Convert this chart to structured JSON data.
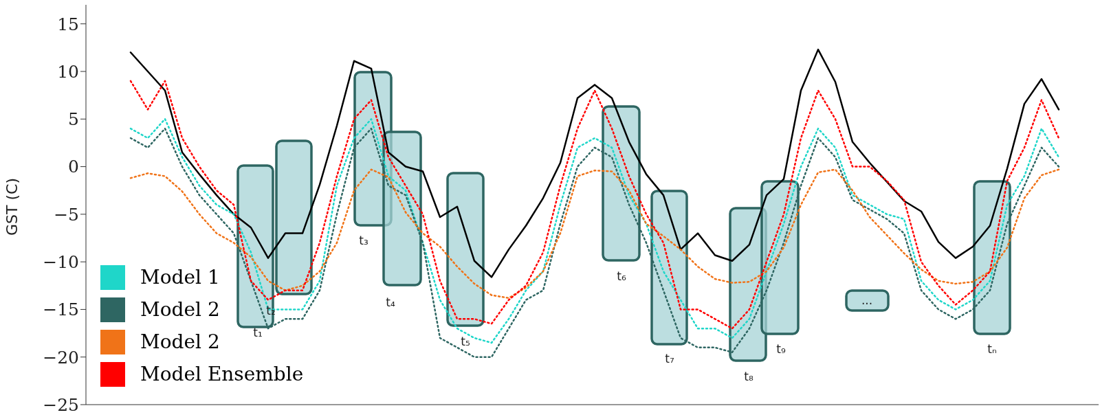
{
  "chart_data": {
    "type": "line",
    "ylabel": "GST (C)",
    "categories": [
      null,
      null,
      null,
      null,
      null,
      null,
      null,
      null,
      null,
      null,
      null,
      null,
      null,
      null,
      null,
      null,
      null,
      null,
      null,
      null,
      null,
      null,
      null,
      null,
      null,
      null,
      null,
      null,
      null,
      null,
      null,
      null,
      null,
      null,
      null,
      null,
      null,
      null,
      null,
      null,
      null,
      null,
      null,
      null,
      null,
      null,
      null,
      null,
      null,
      null,
      null,
      null,
      null,
      null,
      null
    ],
    "ylim": [
      -25,
      17
    ],
    "yticks": [
      -25,
      -20,
      -15,
      -10,
      -5,
      0,
      5,
      10,
      15
    ],
    "grid": false,
    "legend": "bottom left",
    "marker": "none",
    "series": [
      {
        "color": "#000000",
        "line_style": "solid",
        "values": [
          12,
          10,
          8,
          1.5,
          -0.8,
          -3,
          -5,
          -6.4,
          -9.6,
          -7,
          -7,
          -1.9,
          4.3,
          11.1,
          10.3,
          1.5,
          0,
          -0.5,
          -5.3,
          -4.2,
          -9.9,
          -11.6,
          -8.7,
          -6.2,
          -3.3,
          0.4,
          7.2,
          8.6,
          7.2,
          2.6,
          -0.8,
          -3,
          -8.7,
          -7,
          -9.3,
          -9.9,
          -8.2,
          -3,
          -1.3,
          8,
          12.3,
          8.9,
          2.6,
          0.4,
          -1.6,
          -3.6,
          -4.7,
          -7.9,
          -9.6,
          -8.4,
          -6.2,
          -0.2,
          6.6,
          9.2,
          6
        ]
      },
      {
        "name": "Model 1",
        "color": "#1fd6c9",
        "line_style": "dotted",
        "values": [
          4,
          3,
          5,
          1,
          -2,
          -4,
          -5,
          -9,
          -15,
          -15,
          -15,
          -12,
          -2,
          3,
          5,
          -1,
          -2.5,
          -8,
          -14,
          -17,
          -18,
          -18.5,
          -16,
          -13,
          -11,
          -4,
          2,
          3,
          2,
          -3,
          -6,
          -11,
          -14,
          -17,
          -17,
          -18,
          -16,
          -11,
          -6,
          0,
          4,
          2,
          -3,
          -4,
          -5,
          -5.5,
          -12,
          -14,
          -15,
          -14,
          -12,
          -4,
          -1,
          4,
          1
        ]
      },
      {
        "name": "Model 2",
        "color": "#2e6662",
        "line_style": "dotted",
        "values": [
          3,
          2,
          4,
          0,
          -3,
          -5,
          -7,
          -12,
          -17,
          -16,
          -16,
          -13,
          -5,
          2,
          4,
          -2,
          -3,
          -8,
          -18,
          -19,
          -20,
          -20,
          -17,
          -14,
          -13,
          -6,
          0,
          2,
          1,
          -4,
          -8,
          -13,
          -18,
          -19,
          -19,
          -19.5,
          -17,
          -13,
          -8,
          -2,
          3,
          1,
          -3.5,
          -4.5,
          -5.5,
          -7,
          -13,
          -15,
          -16,
          -15,
          -13,
          -6,
          -2,
          2,
          0
        ]
      },
      {
        "name": "Model 2",
        "color": "#f07318",
        "line_style": "dotted",
        "values": [
          -1.2,
          -0.7,
          -1,
          -2.6,
          -5,
          -7,
          -8,
          -9.5,
          -12,
          -13,
          -12.5,
          -11,
          -8,
          -2.5,
          -0.3,
          -1.1,
          -4.8,
          -7,
          -8.4,
          -10.5,
          -12.3,
          -13.5,
          -13.8,
          -12.7,
          -11,
          -7,
          -1,
          -0.4,
          -0.5,
          -2.5,
          -6,
          -7.3,
          -8.7,
          -10.5,
          -11.8,
          -12.2,
          -12.1,
          -11,
          -8.5,
          -4,
          -0.6,
          -0.3,
          -2.5,
          -5.3,
          -7.2,
          -9.1,
          -10.8,
          -12,
          -12.3,
          -12.1,
          -11,
          -8.5,
          -3.3,
          -0.9,
          -0.3
        ]
      },
      {
        "name": "Model Ensemble",
        "color": "#ff0000",
        "line_style": "dotted",
        "values": [
          9,
          6,
          9,
          3,
          0,
          -2.5,
          -4,
          -12,
          -14,
          -13,
          -13,
          -8,
          -1,
          5,
          7,
          1,
          -2,
          -5,
          -12,
          -16,
          -16,
          -16.5,
          -14,
          -12.5,
          -9,
          -2,
          4,
          8,
          4,
          -1,
          -5,
          -8,
          -15,
          -15,
          -16,
          -17,
          -15,
          -10,
          -5,
          3,
          8,
          5,
          0,
          0,
          -1.5,
          -3.5,
          -10,
          -12.5,
          -14.5,
          -13,
          -11,
          -1.5,
          2,
          7,
          3
        ]
      }
    ],
    "annotations": [
      "t₁",
      "t₂",
      "t₃",
      "t₄",
      "t₅",
      "t₆",
      "t₇",
      "t₈",
      "t₉",
      "...",
      "tₙ"
    ]
  }
}
